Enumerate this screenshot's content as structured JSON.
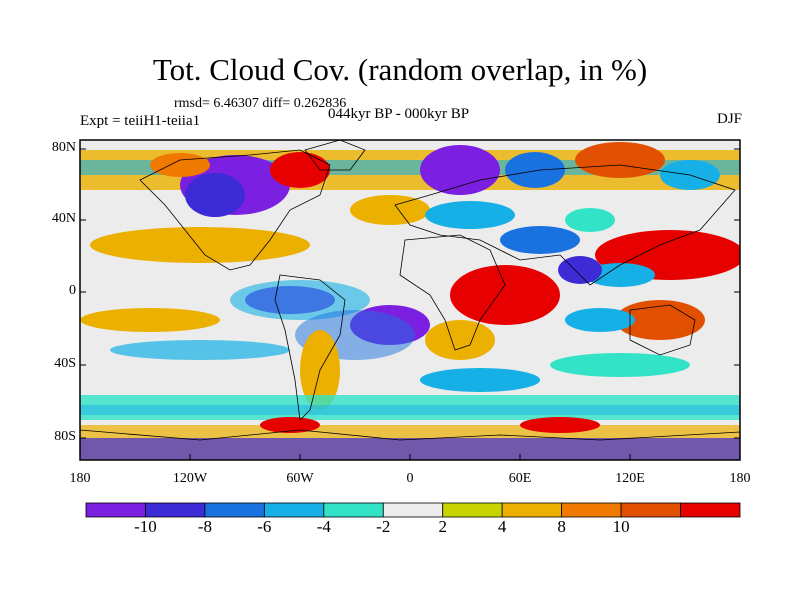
{
  "title": "Tot. Cloud Cov. (random overlap, in %)",
  "stats": "rmsd= 6.46307 diff= 0.262836",
  "left_label": "Expt = teiiH1-teiia1",
  "center_label": "044kyr BP - 000kyr BP",
  "right_label": "DJF",
  "lat_ticks": [
    "80N",
    "40N",
    "0",
    "40S",
    "80S"
  ],
  "lon_ticks": [
    "180",
    "120W",
    "60W",
    "0",
    "60E",
    "120E",
    "180"
  ],
  "colorbar": {
    "labels": [
      "-10",
      "-8",
      "-6",
      "-4",
      "-2",
      "2",
      "4",
      "8",
      "10"
    ],
    "colors": [
      "#7b1fe0",
      "#3d2bd6",
      "#1a72e0",
      "#16b0e6",
      "#33e3c8",
      "#ececec",
      "#c8d400",
      "#ecb000",
      "#f07a00",
      "#e05000",
      "#e60000"
    ]
  }
}
